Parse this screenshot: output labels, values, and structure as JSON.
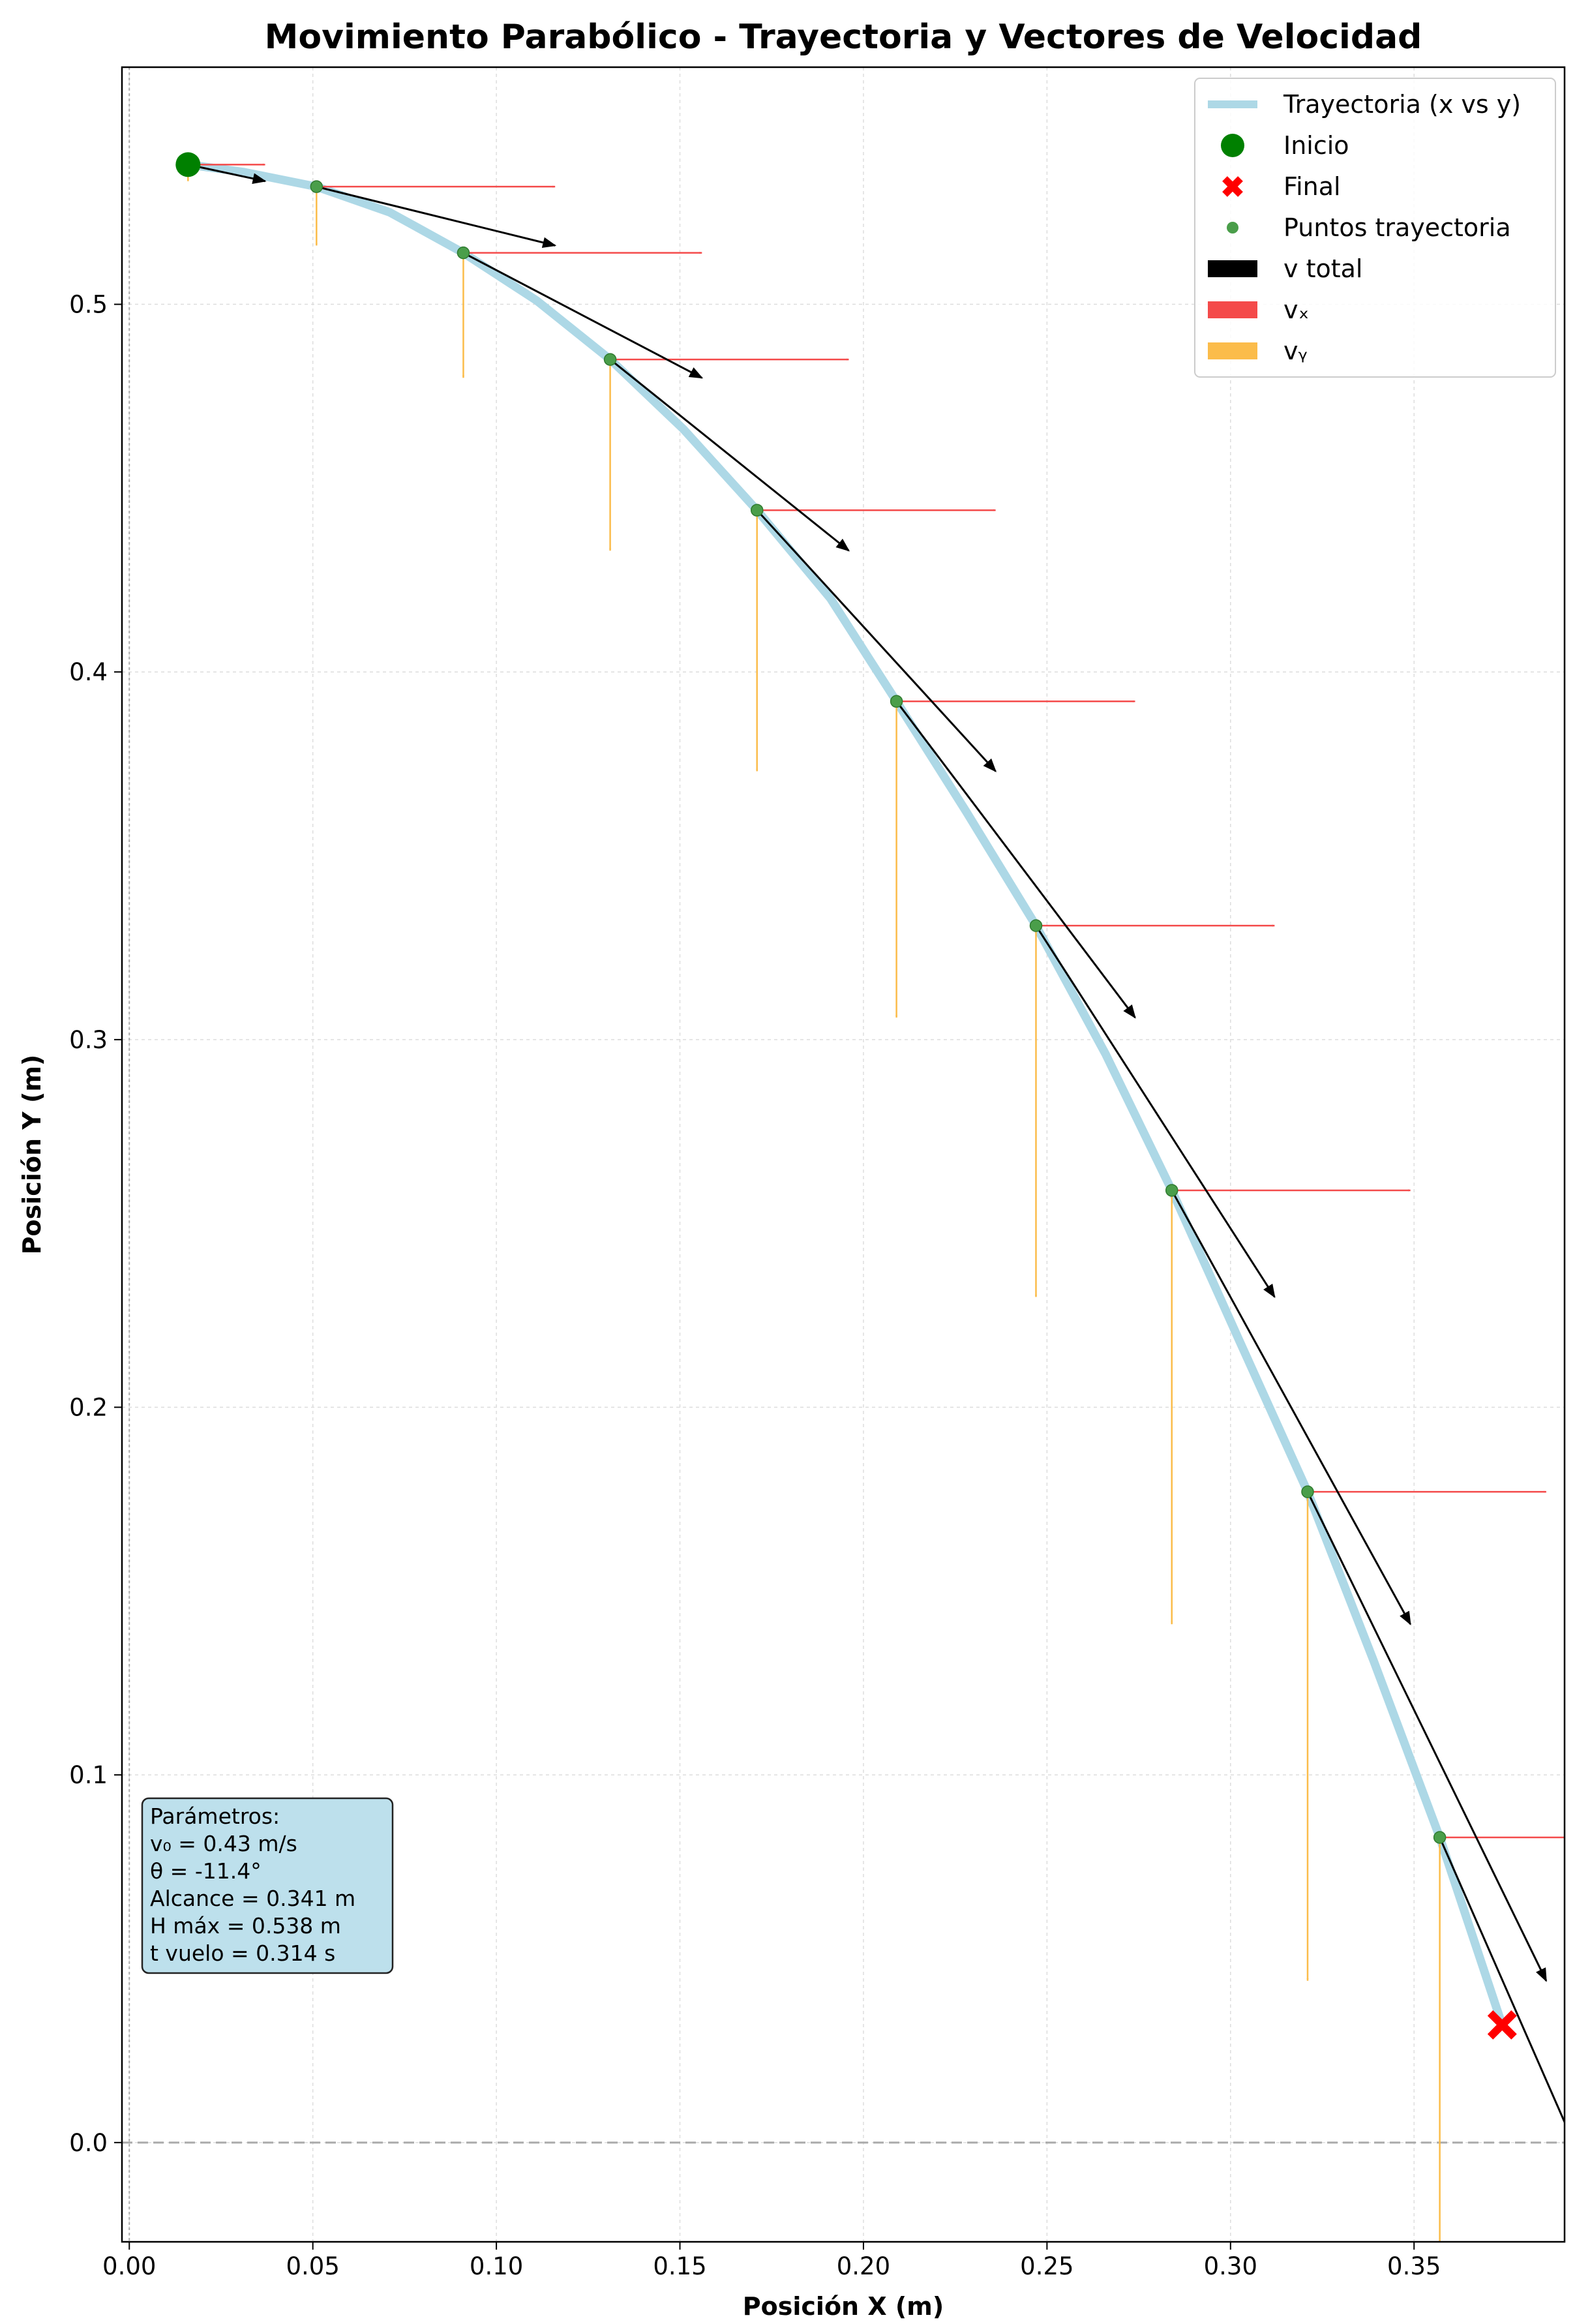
{
  "chart_data": {
    "type": "scatter",
    "title": "Movimiento Parabólico - Trayectoria y Vectores de Velocidad",
    "xlabel": "Posición X (m)",
    "ylabel": "Posición Y (m)",
    "xlim": [
      -0.002,
      0.391
    ],
    "ylim": [
      -0.027,
      0.5645
    ],
    "x_ticks": [
      0.0,
      0.05,
      0.1,
      0.15,
      0.2,
      0.25,
      0.3,
      0.35
    ],
    "x_tick_labels": [
      "0.00",
      "0.05",
      "0.10",
      "0.15",
      "0.20",
      "0.25",
      "0.30",
      "0.35"
    ],
    "y_ticks": [
      0.0,
      0.1,
      0.2,
      0.3,
      0.4,
      0.5
    ],
    "y_tick_labels": [
      "0.0",
      "0.1",
      "0.2",
      "0.3",
      "0.4",
      "0.5"
    ],
    "grid": true,
    "legend_position": "top-right",
    "legend": [
      {
        "label": "Trayectoria (x vs y)",
        "kind": "line",
        "color": "#add8e6"
      },
      {
        "label": "Inicio",
        "kind": "big-dot",
        "color": "#008000"
      },
      {
        "label": "Final",
        "kind": "x-marker",
        "color": "#ff0000"
      },
      {
        "label": "Puntos trayectoria",
        "kind": "small-dot",
        "color": "#4a9e4a"
      },
      {
        "label": "v total",
        "kind": "patch",
        "color": "#000000"
      },
      {
        "label": "vₓ",
        "kind": "patch",
        "color": "#f44a4a"
      },
      {
        "label": "vᵧ",
        "kind": "patch",
        "color": "#fbbc4a"
      }
    ],
    "trajectory": {
      "name": "Trayectoria (x vs y)",
      "x": [
        0.016,
        0.031,
        0.051,
        0.071,
        0.091,
        0.111,
        0.131,
        0.151,
        0.171,
        0.191,
        0.209,
        0.228,
        0.247,
        0.266,
        0.284,
        0.302,
        0.321,
        0.339,
        0.357,
        0.365,
        0.374
      ],
      "y": [
        0.538,
        0.536,
        0.532,
        0.525,
        0.514,
        0.501,
        0.485,
        0.466,
        0.444,
        0.42,
        0.392,
        0.362,
        0.331,
        0.296,
        0.259,
        0.219,
        0.177,
        0.131,
        0.083,
        0.059,
        0.032
      ]
    },
    "start": {
      "label": "Inicio",
      "x": 0.016,
      "y": 0.538
    },
    "end": {
      "label": "Final",
      "x": 0.374,
      "y": 0.032
    },
    "sample_points": {
      "x": [
        0.051,
        0.091,
        0.131,
        0.171,
        0.209,
        0.247,
        0.284,
        0.321,
        0.357
      ],
      "y": [
        0.532,
        0.514,
        0.485,
        0.444,
        0.392,
        0.331,
        0.259,
        0.177,
        0.083
      ]
    },
    "vectors": [
      {
        "x": 0.016,
        "y": 0.538,
        "vx": 0.021,
        "vy": -0.0045
      },
      {
        "x": 0.051,
        "y": 0.532,
        "vx": 0.065,
        "vy": -0.016
      },
      {
        "x": 0.091,
        "y": 0.514,
        "vx": 0.065,
        "vy": -0.034
      },
      {
        "x": 0.131,
        "y": 0.485,
        "vx": 0.065,
        "vy": -0.052
      },
      {
        "x": 0.171,
        "y": 0.444,
        "vx": 0.065,
        "vy": -0.071
      },
      {
        "x": 0.209,
        "y": 0.392,
        "vx": 0.065,
        "vy": -0.086
      },
      {
        "x": 0.247,
        "y": 0.331,
        "vx": 0.065,
        "vy": -0.101
      },
      {
        "x": 0.284,
        "y": 0.259,
        "vx": 0.065,
        "vy": -0.118
      },
      {
        "x": 0.321,
        "y": 0.177,
        "vx": 0.065,
        "vy": -0.133
      },
      {
        "x": 0.357,
        "y": 0.083,
        "vx": 0.065,
        "vy": -0.148
      }
    ],
    "reference_lines": {
      "y_zero_dashed": 0.0,
      "x_zero_dotted": 0.0
    },
    "parameters_box": [
      "Parámetros:",
      "v₀ = 0.43 m/s",
      "θ = -11.4°",
      "Alcance = 0.341 m",
      "H máx = 0.538 m",
      "t vuelo = 0.314 s"
    ]
  },
  "colors": {
    "trajectory": "#add8e6",
    "start": "#008000",
    "end": "#ff0000",
    "points": "#4a9e4a",
    "v_total": "#000000",
    "vx": "#f44a4a",
    "vy": "#fbbc4a",
    "param_box_fill": "#bde0ec"
  }
}
